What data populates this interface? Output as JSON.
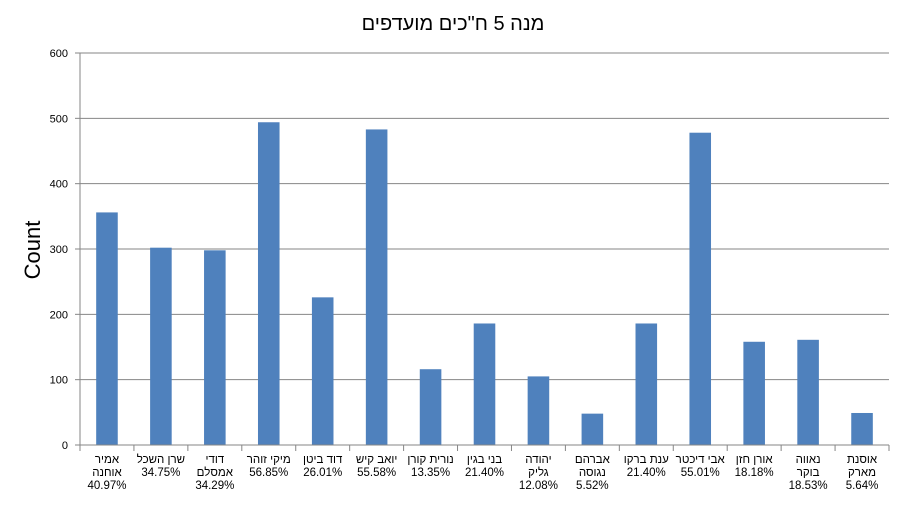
{
  "chart_data": {
    "type": "bar",
    "title": "מנה 5 ח\"כים מועדפים",
    "ylabel": "Count",
    "xlabel": "",
    "ylim": [
      0,
      600
    ],
    "yticks": [
      0,
      100,
      200,
      300,
      400,
      500,
      600
    ],
    "grid": true,
    "legend": "none",
    "bar_color": "#4f81bd",
    "categories": [
      {
        "name_lines": [
          "אמיר",
          "אוחנה"
        ],
        "pct": "40.97%"
      },
      {
        "name_lines": [
          "שרן השכל"
        ],
        "pct": "34.75%"
      },
      {
        "name_lines": [
          "דודי",
          "אמסלם"
        ],
        "pct": "34.29%"
      },
      {
        "name_lines": [
          "מיקי זוהר"
        ],
        "pct": "56.85%"
      },
      {
        "name_lines": [
          "דוד ביטן"
        ],
        "pct": "26.01%"
      },
      {
        "name_lines": [
          "יואב קיש"
        ],
        "pct": "55.58%"
      },
      {
        "name_lines": [
          "נורית קורן"
        ],
        "pct": "13.35%"
      },
      {
        "name_lines": [
          "בני בגין"
        ],
        "pct": "21.40%"
      },
      {
        "name_lines": [
          "יהודה",
          "גליק"
        ],
        "pct": "12.08%"
      },
      {
        "name_lines": [
          "אברהם",
          "נגוסה"
        ],
        "pct": "5.52%"
      },
      {
        "name_lines": [
          "ענת ברקו"
        ],
        "pct": "21.40%"
      },
      {
        "name_lines": [
          "אבי דיכטר"
        ],
        "pct": "55.01%"
      },
      {
        "name_lines": [
          "אורן חזן"
        ],
        "pct": "18.18%"
      },
      {
        "name_lines": [
          "נאווה",
          "בוקר"
        ],
        "pct": "18.53%"
      },
      {
        "name_lines": [
          "אוסנת",
          "מארק"
        ],
        "pct": "5.64%"
      }
    ],
    "values": [
      356,
      302,
      298,
      494,
      226,
      483,
      116,
      186,
      105,
      48,
      186,
      478,
      158,
      161,
      49
    ]
  }
}
